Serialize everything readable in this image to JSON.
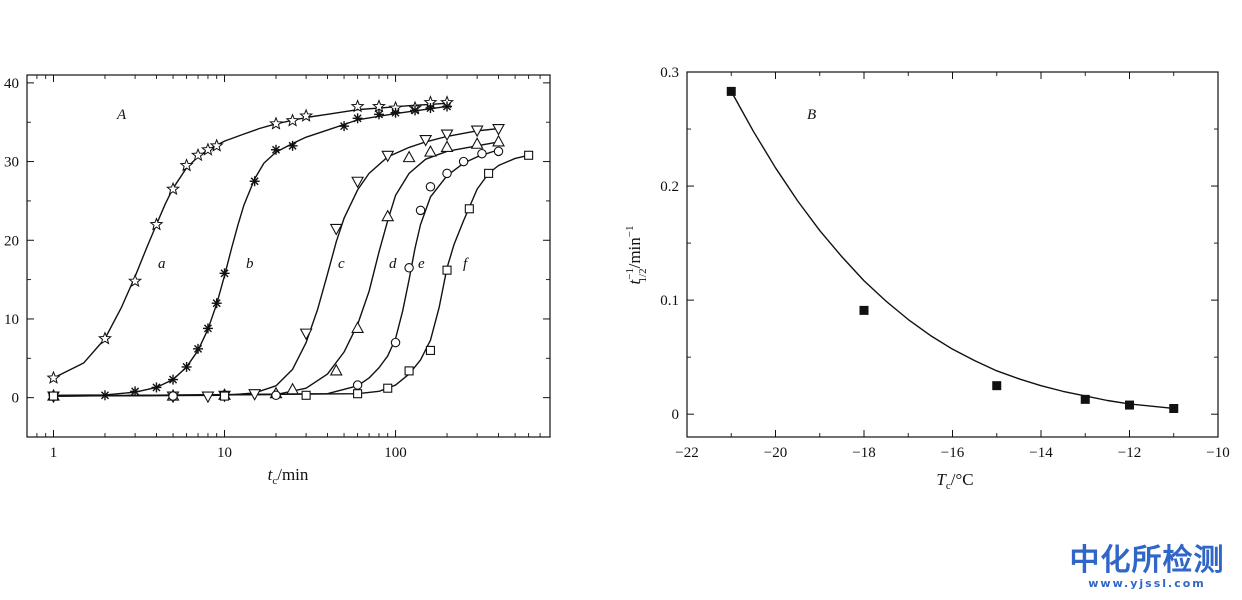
{
  "chart_data": [
    {
      "id": "A",
      "type": "line",
      "panel_label": "A",
      "xscale": "log",
      "xlim": [
        0.7,
        800
      ],
      "ylim": [
        -5,
        41
      ],
      "xticks": [
        1,
        10,
        100
      ],
      "xtick_labels": [
        "1",
        "10",
        "100"
      ],
      "yticks": [
        0,
        10,
        20,
        30,
        40
      ],
      "ytick_labels": [
        "0",
        "10",
        "20",
        "30",
        "40"
      ],
      "xlabel": {
        "main": "t",
        "sub": "c",
        "rest": "/min"
      },
      "ylabel": "",
      "series": [
        {
          "name": "a",
          "marker": "star",
          "x": [
            1,
            2,
            3,
            4,
            5,
            6,
            7,
            8,
            9,
            20,
            25,
            30,
            60,
            80,
            100,
            130,
            160,
            200
          ],
          "y": [
            2.5,
            7.5,
            14.8,
            22,
            26.5,
            29.5,
            30.8,
            31.5,
            32,
            34.8,
            35.2,
            35.8,
            37,
            37,
            36.8,
            36.8,
            37.5,
            37.5
          ],
          "curve_x": [
            1,
            1.5,
            2,
            2.5,
            3,
            3.5,
            4,
            4.5,
            5,
            6,
            7,
            8,
            10,
            13,
            16,
            20,
            30,
            40,
            60,
            80,
            120,
            200
          ],
          "curve_y": [
            2.5,
            4.4,
            7.5,
            11.5,
            15.4,
            19.0,
            22.0,
            24.6,
            26.6,
            29.2,
            30.6,
            31.5,
            32.6,
            33.5,
            34.2,
            34.8,
            35.6,
            36.0,
            36.6,
            36.8,
            37.1,
            37.4
          ]
        },
        {
          "name": "b",
          "marker": "asterisk",
          "x": [
            1,
            2,
            3,
            4,
            5,
            6,
            7,
            8,
            9,
            10,
            15,
            20,
            25,
            50,
            60,
            80,
            100,
            130,
            160,
            200
          ],
          "y": [
            0.3,
            0.3,
            0.8,
            1.3,
            2.3,
            3.9,
            6.2,
            8.8,
            12,
            15.8,
            27.5,
            31.5,
            32,
            34.5,
            35.5,
            36,
            36.2,
            36.5,
            36.8,
            37
          ],
          "curve_x": [
            1,
            2,
            3,
            4,
            5,
            6,
            7,
            8,
            9,
            10,
            11,
            12,
            13,
            15,
            17,
            20,
            25,
            30,
            40,
            60,
            100,
            200
          ],
          "curve_y": [
            0.3,
            0.35,
            0.7,
            1.3,
            2.3,
            3.9,
            6.0,
            8.7,
            11.9,
            15.5,
            19.0,
            22.0,
            24.5,
            27.8,
            29.8,
            31.2,
            32.3,
            33.1,
            34.0,
            35.3,
            36.1,
            37.0
          ]
        },
        {
          "name": "c",
          "marker": "triangle-down",
          "x": [
            1,
            5,
            8,
            10,
            15,
            30,
            45,
            60,
            90,
            150,
            200,
            300,
            400
          ],
          "y": [
            0.2,
            0.2,
            0.2,
            0.3,
            0.5,
            8.2,
            21.5,
            27.5,
            30.8,
            32.8,
            33.5,
            34,
            34.2
          ],
          "curve_x": [
            1,
            10,
            15,
            20,
            25,
            30,
            35,
            40,
            45,
            50,
            60,
            70,
            90,
            120,
            150,
            200,
            300,
            400
          ],
          "curve_y": [
            0.2,
            0.3,
            0.6,
            1.5,
            3.6,
            7.0,
            11.2,
            15.7,
            19.8,
            22.8,
            26.4,
            28.5,
            30.6,
            31.8,
            32.5,
            33.2,
            33.9,
            34.2
          ]
        },
        {
          "name": "d",
          "marker": "triangle-up",
          "x": [
            1,
            5,
            10,
            20,
            25,
            45,
            60,
            90,
            120,
            160,
            200,
            300,
            400
          ],
          "y": [
            0.2,
            0.2,
            0.3,
            0.5,
            1,
            3.4,
            8.8,
            23,
            30.5,
            31.2,
            31.8,
            32.2,
            32.5
          ],
          "curve_x": [
            1,
            20,
            30,
            40,
            50,
            60,
            70,
            80,
            90,
            100,
            120,
            150,
            200,
            300,
            400
          ],
          "curve_y": [
            0.2,
            0.4,
            1.2,
            3.0,
            5.8,
            9.3,
            13.5,
            18.5,
            22.5,
            25.7,
            28.5,
            30.3,
            31.3,
            32.0,
            32.5
          ]
        },
        {
          "name": "e",
          "marker": "circle",
          "x": [
            1,
            5,
            10,
            20,
            60,
            100,
            120,
            140,
            160,
            200,
            250,
            320,
            400
          ],
          "y": [
            0.2,
            0.2,
            0.3,
            0.3,
            1.6,
            7,
            16.5,
            23.8,
            26.8,
            28.5,
            30,
            31,
            31.3
          ],
          "curve_x": [
            1,
            40,
            60,
            70,
            80,
            90,
            100,
            110,
            120,
            130,
            140,
            160,
            200,
            250,
            300,
            400
          ],
          "curve_y": [
            0.2,
            0.5,
            1.5,
            2.5,
            3.8,
            5.3,
            7.5,
            11.0,
            15.0,
            19.0,
            22.0,
            25.5,
            28.2,
            29.8,
            30.6,
            31.5
          ]
        },
        {
          "name": "f",
          "marker": "square",
          "x": [
            1,
            10,
            30,
            60,
            90,
            120,
            160,
            200,
            270,
            350,
            600
          ],
          "y": [
            0.2,
            0.2,
            0.3,
            0.5,
            1.2,
            3.4,
            6,
            16.2,
            24,
            28.5,
            30.8
          ],
          "curve_x": [
            1,
            60,
            80,
            100,
            120,
            140,
            160,
            180,
            200,
            220,
            250,
            300,
            350,
            400,
            500,
            600
          ],
          "curve_y": [
            0.2,
            0.5,
            0.8,
            1.6,
            3.0,
            4.8,
            7.3,
            11.5,
            16.5,
            19.5,
            22.5,
            26.5,
            28.5,
            29.5,
            30.4,
            30.8
          ]
        }
      ]
    },
    {
      "id": "B",
      "type": "scatter",
      "panel_label": "B",
      "xlim": [
        -22,
        -10
      ],
      "ylim": [
        -0.02,
        0.3
      ],
      "xticks": [
        -22,
        -20,
        -18,
        -16,
        -14,
        -12,
        -10
      ],
      "xtick_labels": [
        "−22",
        "−20",
        "−18",
        "−16",
        "−14",
        "−12",
        "−10"
      ],
      "yticks": [
        0,
        0.1,
        0.2,
        0.3
      ],
      "ytick_labels": [
        "0",
        "0.1",
        "0.2",
        "0.3"
      ],
      "xlabel": {
        "main": "T",
        "sub": "c",
        "rest": "/°C"
      },
      "ylabel": {
        "main": "t",
        "sup": "−1",
        "sub": "1/2",
        "rest": "/min",
        "rest_sup": "−1"
      },
      "series": [
        {
          "name": "measured",
          "marker": "filled-square",
          "x": [
            -21,
            -18,
            -15,
            -13,
            -12,
            -11
          ],
          "y": [
            0.283,
            0.091,
            0.025,
            0.013,
            0.008,
            0.005
          ]
        },
        {
          "name": "fit",
          "marker": "none",
          "x": [
            -21,
            -20.5,
            -20,
            -19.5,
            -19,
            -18.5,
            -18,
            -17.5,
            -17,
            -16.5,
            -16,
            -15.5,
            -15,
            -14.5,
            -14,
            -13.5,
            -13,
            -12.5,
            -12,
            -11.5,
            -11
          ],
          "y": [
            0.283,
            0.248,
            0.216,
            0.187,
            0.161,
            0.138,
            0.117,
            0.099,
            0.083,
            0.069,
            0.057,
            0.047,
            0.038,
            0.031,
            0.025,
            0.02,
            0.016,
            0.012,
            0.009,
            0.007,
            0.005
          ]
        }
      ]
    }
  ],
  "watermark": {
    "title": "中化所检测",
    "url": "www.yjssl.com"
  }
}
